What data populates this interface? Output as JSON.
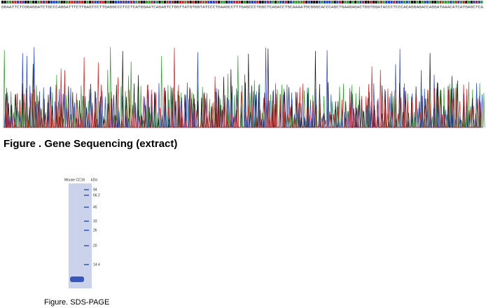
{
  "sequencing": {
    "sequence": "GGAATTCTCGGAGGATCTGCCCAGGATTTCTTGAGTCCTTGAGGCCCTCCTCATGGAATCAGAGTCTGGTTATGTGGTATCCCTGAAGCCTTTGAGCCCTGGCTCAGACCTGCAAAATGCGGGCACCCAGCTGAAGAGACTGGTGGATACCCTCCCACAGGAGACCAGGATAAACATCATGAGCTCA",
    "caption": "Figure . Gene Sequencing (extract)"
  },
  "sds_page": {
    "lane_label": "Mouse CC16",
    "unit": "kDa",
    "markers": [
      "94",
      "66.2",
      "45",
      "33",
      "26",
      "20",
      "14.4"
    ],
    "caption": "Figure. SDS-PAGE"
  }
}
